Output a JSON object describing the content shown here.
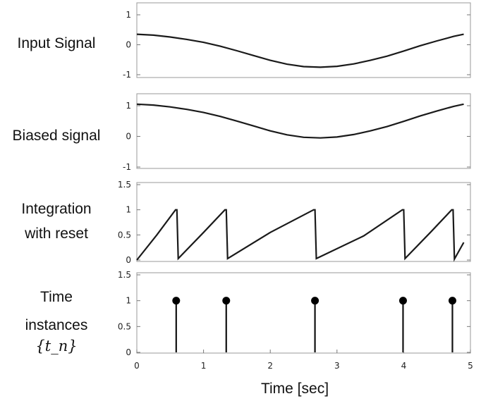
{
  "chart_data": [
    {
      "type": "line",
      "row_label": [
        "Input Signal"
      ],
      "ylim": [
        -1,
        1
      ],
      "yticks": [
        1,
        0,
        -1
      ],
      "ytick_labels": [
        "1",
        "0",
        "-1"
      ],
      "xlim": [
        0,
        5
      ],
      "x": [
        0,
        0.25,
        0.5,
        0.75,
        1,
        1.25,
        1.5,
        1.75,
        2,
        2.25,
        2.5,
        2.75,
        3,
        3.25,
        3.5,
        3.75,
        4,
        4.25,
        4.5,
        4.75,
        4.9
      ],
      "values": [
        0.35,
        0.32,
        0.26,
        0.18,
        0.08,
        -0.05,
        -0.2,
        -0.36,
        -0.52,
        -0.65,
        -0.73,
        -0.75,
        -0.72,
        -0.64,
        -0.52,
        -0.38,
        -0.21,
        -0.03,
        0.13,
        0.28,
        0.35
      ]
    },
    {
      "type": "line",
      "row_label": [
        "Biased signal"
      ],
      "ylim": [
        -1,
        1
      ],
      "yticks": [
        1,
        0,
        -1
      ],
      "ytick_labels": [
        "1",
        "0",
        "-1"
      ],
      "xlim": [
        0,
        5
      ],
      "x": [
        0,
        0.25,
        0.5,
        0.75,
        1,
        1.25,
        1.5,
        1.75,
        2,
        2.25,
        2.5,
        2.75,
        3,
        3.25,
        3.5,
        3.75,
        4,
        4.25,
        4.5,
        4.75,
        4.9
      ],
      "values": [
        1.05,
        1.02,
        0.96,
        0.88,
        0.78,
        0.65,
        0.5,
        0.34,
        0.18,
        0.05,
        -0.03,
        -0.05,
        -0.02,
        0.06,
        0.18,
        0.32,
        0.49,
        0.67,
        0.83,
        0.98,
        1.05
      ]
    },
    {
      "type": "line",
      "row_label": [
        "Integration",
        "with reset"
      ],
      "ylim": [
        0,
        1.5
      ],
      "yticks": [
        1.5,
        1,
        0.5,
        0
      ],
      "ytick_labels": [
        "1.5",
        "1",
        "0.5",
        "0"
      ],
      "xlim": [
        0,
        5
      ],
      "x": [
        0,
        0.3,
        0.58,
        0.6,
        0.62,
        1,
        1.32,
        1.34,
        1.36,
        2,
        2.65,
        2.67,
        2.69,
        3.4,
        3.98,
        4.0,
        4.02,
        4.4,
        4.72,
        4.74,
        4.76,
        4.9
      ],
      "values": [
        0,
        0.5,
        1,
        1,
        0.03,
        0.55,
        1,
        1,
        0.03,
        0.55,
        1,
        1,
        0.03,
        0.48,
        1,
        1,
        0.03,
        0.55,
        1,
        1,
        0.02,
        0.35
      ]
    },
    {
      "type": "stem",
      "row_label": [
        "Time",
        "instances"
      ],
      "row_math": "{t_n}",
      "ylim": [
        0,
        1.5
      ],
      "yticks": [
        1.5,
        1,
        0.5,
        0
      ],
      "ytick_labels": [
        "1.5",
        "1",
        "0.5",
        "0"
      ],
      "xlim": [
        0,
        5
      ],
      "xticks": [
        0,
        1,
        2,
        3,
        4,
        5
      ],
      "xtick_labels": [
        "0",
        "1",
        "2",
        "3",
        "4",
        "5"
      ],
      "x": [
        0.59,
        1.34,
        2.67,
        3.99,
        4.73
      ],
      "values": [
        1,
        1,
        1,
        1,
        1
      ]
    }
  ],
  "xlabel": "Time [sec]"
}
